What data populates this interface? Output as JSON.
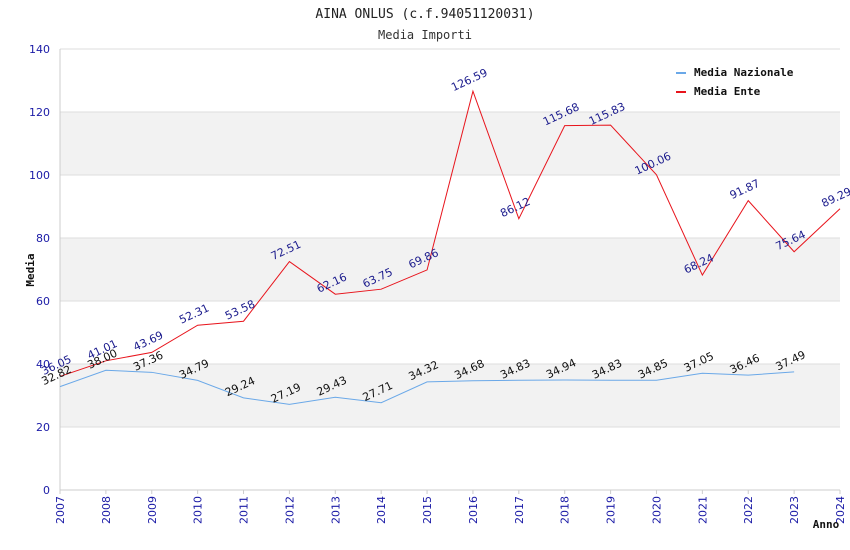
{
  "chart_data": {
    "type": "line",
    "title": "AINA ONLUS (c.f.94051120031)",
    "subtitle": "Media Importi",
    "xlabel": "Anno",
    "ylabel": "Media",
    "ylim": [
      0,
      140
    ],
    "yticks": [
      0,
      20,
      40,
      60,
      80,
      100,
      120,
      140
    ],
    "x": [
      2007,
      2008,
      2009,
      2010,
      2011,
      2012,
      2013,
      2014,
      2015,
      2016,
      2017,
      2018,
      2019,
      2020,
      2021,
      2022,
      2023,
      2024
    ],
    "legend_position": "top-right",
    "grid": "alternating horizontal bands",
    "series": [
      {
        "name": "Media Nazionale",
        "color": "#6aa8e8",
        "label_color": "#111111",
        "x": [
          2007,
          2008,
          2009,
          2010,
          2011,
          2012,
          2013,
          2014,
          2015,
          2016,
          2017,
          2018,
          2019,
          2020,
          2021,
          2022,
          2023
        ],
        "values": [
          32.82,
          38.0,
          37.36,
          34.79,
          29.24,
          27.19,
          29.43,
          27.71,
          34.32,
          34.68,
          34.83,
          34.94,
          34.83,
          34.85,
          37.05,
          36.46,
          37.49
        ],
        "labels": [
          "32.82",
          "38.00",
          "37.36",
          "34.79",
          "29.24",
          "27.19",
          "29.43",
          "27.71",
          "34.32",
          "34.68",
          "34.83",
          "34.94",
          "34.83",
          "34.85",
          "37.05",
          "36.46",
          "37.49"
        ]
      },
      {
        "name": "Media Ente",
        "color": "#e8141c",
        "label_color": "#1a1a8c",
        "x": [
          2007,
          2008,
          2009,
          2010,
          2011,
          2012,
          2013,
          2014,
          2015,
          2016,
          2017,
          2018,
          2019,
          2020,
          2021,
          2022,
          2023,
          2024
        ],
        "values": [
          36.05,
          41.01,
          43.69,
          52.31,
          53.58,
          72.51,
          62.16,
          63.75,
          69.86,
          126.59,
          86.12,
          115.68,
          115.83,
          100.06,
          68.24,
          91.87,
          75.64,
          89.29
        ],
        "labels": [
          "36.05",
          "41.01",
          "43.69",
          "52.31",
          "53.58",
          "72.51",
          "62.16",
          "63.75",
          "69.86",
          "126.59",
          "86.12",
          "115.68",
          "115.83",
          "100.06",
          "68.24",
          "91.87",
          "75.64",
          "89.29"
        ]
      }
    ]
  }
}
